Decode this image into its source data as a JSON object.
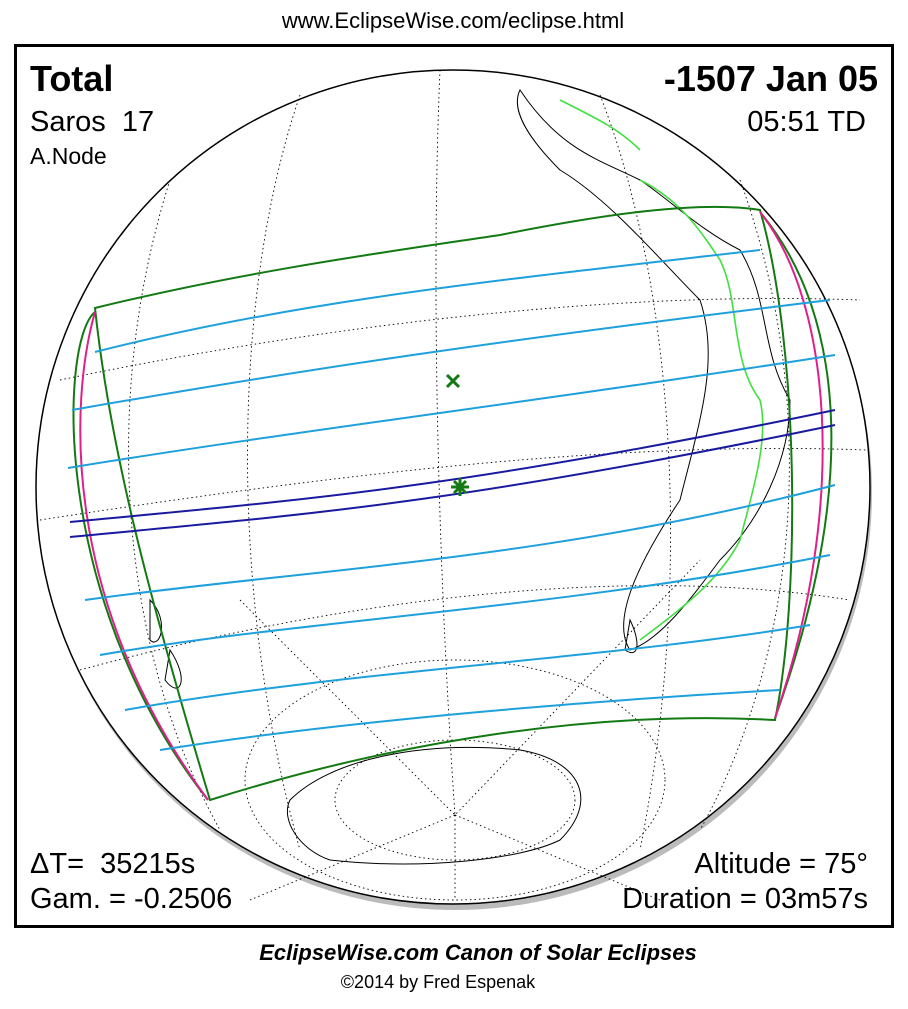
{
  "header": {
    "url": "www.EclipseWise.com/eclipse.html"
  },
  "eclipse": {
    "type": "Total",
    "date": "-1507 Jan 05",
    "saros": "Saros  17",
    "time": "05:51 TD",
    "node": "A.Node",
    "delta_t": "ΔT=  35215s",
    "gamma": "Gam. = -0.2506",
    "altitude": "Altitude = 75°",
    "duration": "Duration = 03m57s"
  },
  "footer": {
    "title": "EclipseWise.com Canon of Solar Eclipses",
    "credit": "©2014 by Fred Espenak"
  }
}
